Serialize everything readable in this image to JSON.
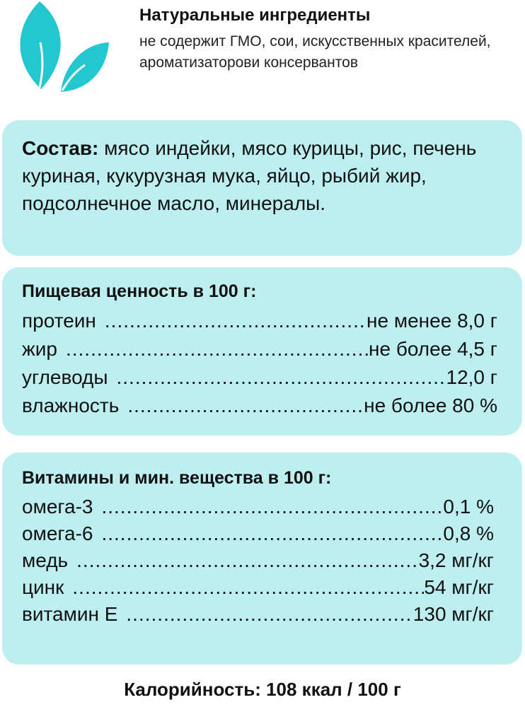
{
  "header": {
    "icon": "leaves-icon",
    "title": "Натуральные ингредиенты",
    "subtitle": "не содержит ГМО, сои, искусственных красителей, ароматизаторови консервантов"
  },
  "colors": {
    "accent": "#22c7cf",
    "box": "#bdeef0"
  },
  "composition": {
    "label": "Состав:",
    "text": " мясо индейки, мясо курицы, рис, печень куриная, кукурузная мука, яйцо, рыбий жир, подсолнечное масло, минералы."
  },
  "nutrition": {
    "title": "Пищевая ценность в 100 г:",
    "rows": [
      {
        "label": "протеин",
        "value": "не менее 8,0 г"
      },
      {
        "label": "жир",
        "value": "не более 4,5 г"
      },
      {
        "label": "углеводы",
        "value": "12,0 г"
      },
      {
        "label": "влажность",
        "value": "не более 80 %"
      }
    ]
  },
  "vitamins": {
    "title": "Витамины и мин. вещества в 100 г:",
    "rows": [
      {
        "label": "омега-3",
        "value": "0,1 %"
      },
      {
        "label": "омега-6",
        "value": "0,8 %"
      },
      {
        "label": "медь",
        "value": "3,2 мг/кг"
      },
      {
        "label": "цинк",
        "value": "54 мг/кг"
      },
      {
        "label": "витамин Е",
        "value": "130 мг/кг"
      }
    ]
  },
  "footer": {
    "calories": "Калорийность: 108 ккал / 100 г"
  }
}
